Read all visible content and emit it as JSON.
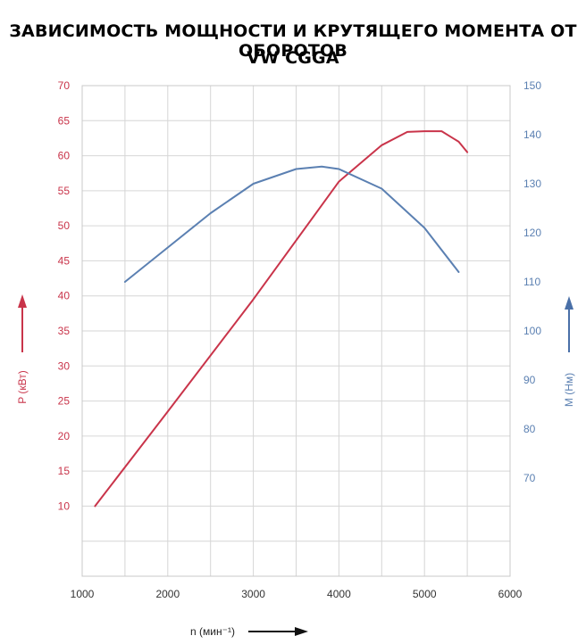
{
  "title": "ЗАВИСИМОСТЬ МОЩНОСТИ И КРУТЯЩЕГО МОМЕНТА ОТ ОБОРОТОВ",
  "subtitle": "VW CGGA",
  "colors": {
    "power": "#c9344a",
    "torque": "#5b80b2",
    "grid": "#d6d6d6",
    "axis_text": "#444444"
  },
  "chart_data": {
    "type": "line",
    "title": "ЗАВИСИМОСТЬ МОЩНОСТИ И КРУТЯЩЕГО МОМЕНТА ОТ ОБОРОТОВ",
    "subtitle": "VW CGGA",
    "xlabel": "n (мин⁻¹)",
    "ylabel_left": "P (кВт)",
    "ylabel_right": "M (Нм)",
    "xlim": [
      1000,
      6000
    ],
    "ylim_left": [
      0,
      70
    ],
    "ylim_right": [
      50,
      150
    ],
    "x_ticks": [
      1000,
      2000,
      3000,
      4000,
      5000,
      6000
    ],
    "y_left_ticks": [
      10,
      15,
      20,
      25,
      30,
      35,
      40,
      45,
      50,
      55,
      60,
      65,
      70
    ],
    "y_right_ticks": [
      70,
      80,
      90,
      100,
      110,
      120,
      130,
      140,
      150
    ],
    "grid": true,
    "series": [
      {
        "name": "P (кВт)",
        "axis": "left",
        "color": "#c9344a",
        "x": [
          1150,
          2000,
          3000,
          4000,
          4500,
          4800,
          5000,
          5200,
          5400,
          5500
        ],
        "y": [
          10,
          23.5,
          39.5,
          56.3,
          61.5,
          63.4,
          63.5,
          63.5,
          62,
          60.5
        ]
      },
      {
        "name": "M (Нм)",
        "axis": "right",
        "color": "#5b80b2",
        "x": [
          1500,
          2000,
          2500,
          3000,
          3500,
          3800,
          4000,
          4500,
          5000,
          5400
        ],
        "y": [
          110,
          117,
          124,
          130,
          133,
          133.5,
          133,
          129,
          121,
          112
        ]
      }
    ]
  }
}
